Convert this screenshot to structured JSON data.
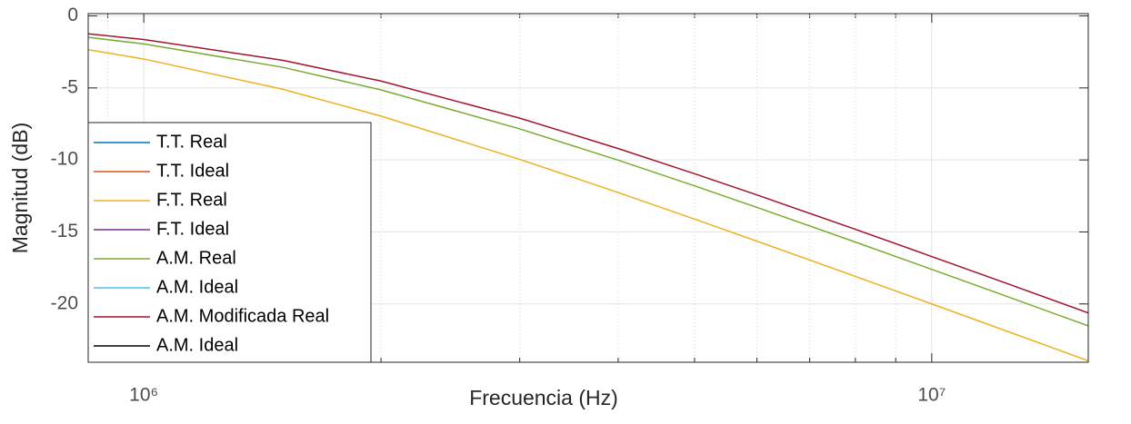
{
  "chart_data": {
    "type": "line",
    "x_label": "Frecuencia (Hz)",
    "y_label": "Magnitud (dB)",
    "x": [
      850000,
      1000000,
      1500000,
      2000000,
      3000000,
      4000000,
      5000000,
      6000000,
      8000000,
      10000000,
      12500000,
      15800000
    ],
    "series": [
      {
        "name": "T.T. Real",
        "color": "#0072bd",
        "values": [
          null,
          null,
          null,
          null,
          null,
          null,
          null,
          null,
          null,
          null,
          null,
          null
        ]
      },
      {
        "name": "T.T. Ideal",
        "color": "#d95319",
        "values": [
          null,
          null,
          null,
          null,
          null,
          null,
          null,
          null,
          null,
          null,
          null,
          null
        ]
      },
      {
        "name": "F.T. Real",
        "color": "#edb120",
        "values": [
          -2.344,
          -2.989,
          -5.089,
          -6.955,
          -9.961,
          -12.263,
          -14.108,
          -15.64,
          -18.086,
          -20.0,
          -21.923,
          -23.948
        ]
      },
      {
        "name": "F.T. Ideal",
        "color": "#7e2f8e",
        "values": [
          null,
          null,
          null,
          null,
          null,
          null,
          null,
          null,
          null,
          null,
          null,
          null
        ]
      },
      {
        "name": "A.M. Real",
        "color": "#77ac30",
        "values": [
          -1.487,
          -1.946,
          -3.564,
          -5.134,
          -7.844,
          -10.02,
          -11.799,
          -13.294,
          -15.703,
          -17.599,
          -19.509,
          -21.526
        ]
      },
      {
        "name": "A.M. Ideal",
        "color": "#4dbeee",
        "values": [
          null,
          null,
          null,
          null,
          null,
          null,
          null,
          null,
          null,
          null,
          null,
          null
        ]
      },
      {
        "name": "A.M. Modificada Real",
        "color": "#a2142f",
        "values": [
          -1.243,
          -1.638,
          -3.079,
          -4.524,
          -7.098,
          -9.209,
          -10.955,
          -12.43,
          -14.819,
          -16.706,
          -18.611,
          -20.622
        ]
      },
      {
        "name": "A.M. Ideal",
        "color": "#000000",
        "values": [
          null,
          null,
          null,
          null,
          null,
          null,
          null,
          null,
          null,
          null,
          null,
          null
        ]
      }
    ],
    "xscale": "log",
    "xlim": [
      850000,
      15800000
    ],
    "xticks": [
      {
        "value": 1000000,
        "label": "10⁶"
      },
      {
        "value": 10000000,
        "label": "10⁷"
      }
    ],
    "xminorticks": [
      900000,
      2000000,
      3000000,
      4000000,
      5000000,
      6000000,
      7000000,
      8000000,
      9000000
    ],
    "ylim": [
      -24.05,
      0.16
    ],
    "yticks": [
      0,
      -5,
      -10,
      -15,
      -20
    ],
    "grid": true,
    "legend": "lower left"
  }
}
